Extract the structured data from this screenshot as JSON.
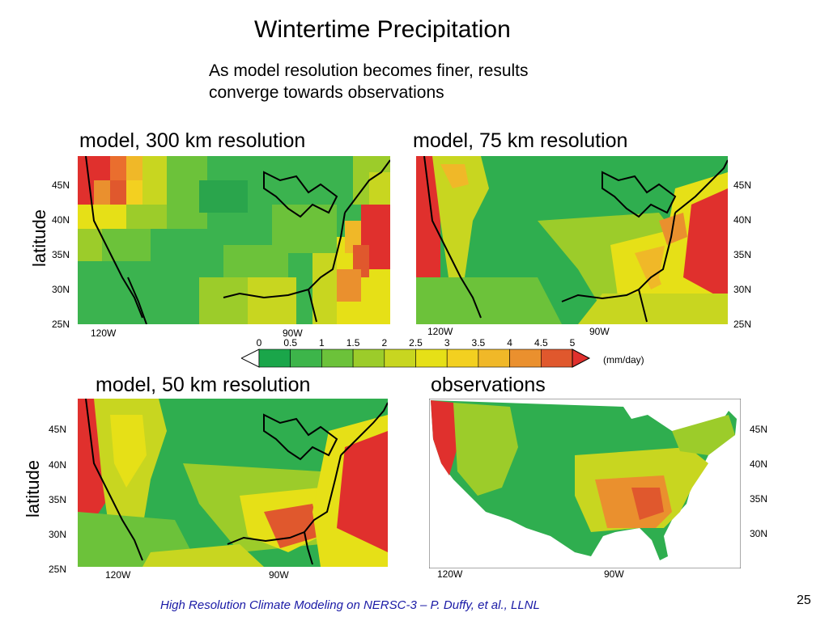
{
  "slide": {
    "title": "Wintertime Precipitation",
    "subtitle_line1": "As model resolution becomes finer, results",
    "subtitle_line2": "converge towards observations",
    "footer": "High Resolution Climate Modeling on NERSC-3 – P. Duffy, et al., LLNL",
    "page_number": "25"
  },
  "panels": {
    "p300": {
      "title": "model, 300 km resolution",
      "ylabel": "latitude",
      "lat_labels": [
        "45N",
        "40N",
        "35N",
        "30N",
        "25N"
      ],
      "lon_labels": [
        "120W",
        "90W"
      ]
    },
    "p75": {
      "title": "model, 75 km resolution",
      "lat_labels": [
        "45N",
        "40N",
        "35N",
        "30N",
        "25N"
      ],
      "lon_labels": [
        "120W",
        "90W"
      ]
    },
    "p50": {
      "title": "model, 50 km resolution",
      "ylabel": "latitude",
      "lat_labels": [
        "45N",
        "40N",
        "35N",
        "30N",
        "25N"
      ],
      "lon_labels": [
        "120W",
        "90W"
      ]
    },
    "obs": {
      "title": "observations",
      "lat_labels": [
        "45N",
        "40N",
        "35N",
        "30N"
      ],
      "lon_labels": [
        "120W",
        "90W"
      ]
    }
  },
  "colorbar": {
    "ticks": [
      "0",
      "0.5",
      "1",
      "1.5",
      "2",
      "2.5",
      "3",
      "3.5",
      "4",
      "4.5",
      "5"
    ],
    "units": "(mm/day)",
    "colors": [
      "#1aa64a",
      "#3db54a",
      "#6cc23a",
      "#9ccc2a",
      "#c8d620",
      "#e6e017",
      "#f3d020",
      "#f0b828",
      "#ea902e",
      "#e0582d"
    ],
    "overflow_color": "#e0302d"
  }
}
